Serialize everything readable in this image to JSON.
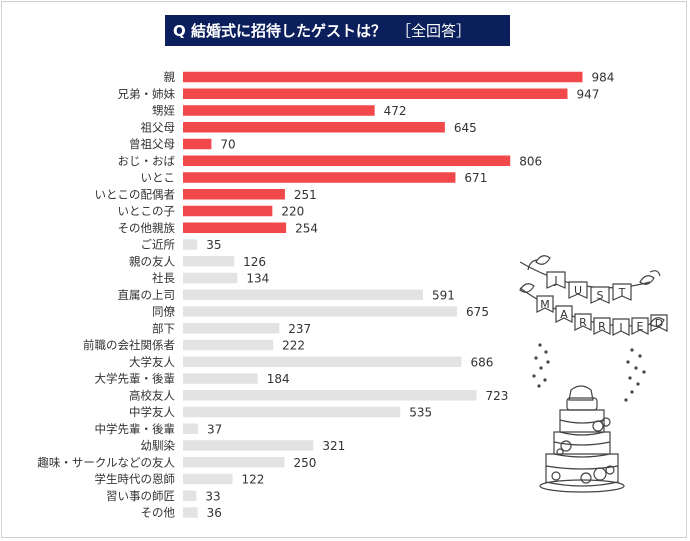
{
  "chart_data": {
    "type": "bar",
    "orientation": "horizontal",
    "title": "Q 結婚式に招待したゲストは？",
    "subtitle": "［全回答］",
    "categories": [
      "親",
      "兄弟・姉妹",
      "甥姪",
      "祖父母",
      "曾祖父母",
      "おじ・おば",
      "いとこ",
      "いとこの配偶者",
      "いとこの子",
      "その他親族",
      "ご近所",
      "親の友人",
      "社長",
      "直属の上司",
      "同僚",
      "部下",
      "前職の会社関係者",
      "大学友人",
      "大学先輩・後輩",
      "高校友人",
      "中学友人",
      "中学先輩・後輩",
      "幼馴染",
      "趣味・サークルなどの友人",
      "学生時代の恩師",
      "習い事の師匠",
      "その他"
    ],
    "values": [
      984,
      947,
      472,
      645,
      70,
      806,
      671,
      251,
      220,
      254,
      35,
      126,
      134,
      591,
      675,
      237,
      222,
      686,
      184,
      723,
      535,
      37,
      321,
      250,
      122,
      33,
      36
    ],
    "highlight_count": 10,
    "colors": {
      "highlight": "#f0484b",
      "default": "#e3e3e3",
      "title_bg": "#0b1f5c"
    },
    "xlim": [
      0,
      1000
    ],
    "grid": false,
    "legend": "none"
  },
  "decoration": {
    "banner_letters": [
      "J",
      "U",
      "S",
      "T",
      "M",
      "A",
      "R",
      "R",
      "I",
      "E",
      "D"
    ]
  }
}
